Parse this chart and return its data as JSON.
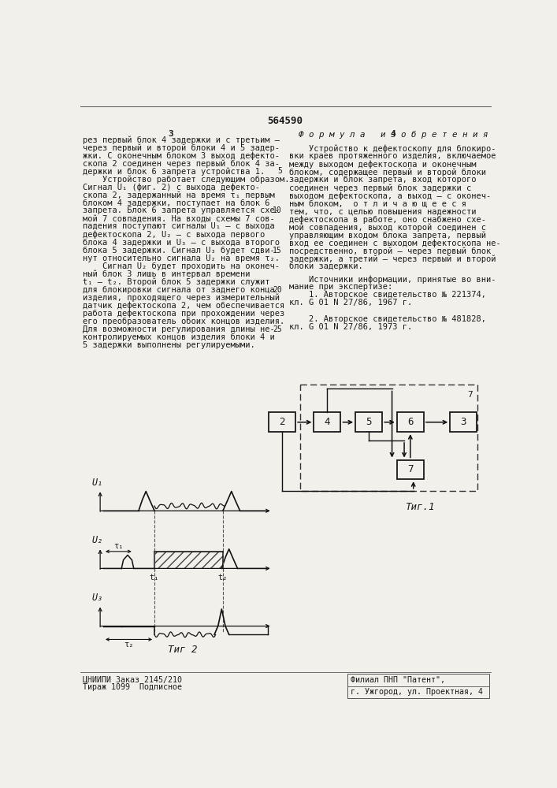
{
  "patent_number": "564590",
  "page_width": 7.07,
  "page_height": 10.0,
  "bg_color": "#f2f0eb",
  "text_color": "#1a1a1a",
  "col1_lines": [
    "рез первый блок 4 задержки и с третьим —",
    "через первый и второй блоки 4 и 5 задер-",
    "жки. С оконечным блоком 3 выход дефекто-",
    "скопа 2 соединен через первый блок 4 за-",
    "держки и блок 6 запрета устройства 1.",
    "    Устройство работает следующим образом.",
    "Сигнал U₁ (фиг. 2) с выхода дефекто-",
    "скопа 2, задержанный на время τ₁ первым",
    "блоком 4 задержки, поступает на блок 6",
    "запрета. Блок 6 запрета управляется схе-",
    "мой 7 совпадения. На входы схемы 7 сов-",
    "падения поступают сигналы U₁ — с выхода",
    "дефектоскопа 2, U₂ — с выхода первого",
    "блока 4 задержки и U₃ — с выхода второго",
    "блока 5 задержки. Сигнал U₃ будет сдви-",
    "нут относительно сигнала U₂ на время τ₂.",
    "    Сигнал U₂ будет проходить на оконеч-",
    "ный блок 3 лишь в интервал времени",
    "t₁ — t₂. Второй блок 5 задержки служит",
    "для блокировки сигнала от заднего конца",
    "изделия, проходящего через измерительный",
    "датчик дефектоскопа 2, чем обеспечивается",
    "работа дефектоскопа при прохождении через",
    "его преобразователь обоих концов изделия.",
    "Для возможности регулирования длины не-",
    "контролируемых концов изделия блоки 4 и",
    "5 задержки выполнены регулируемыми."
  ],
  "col2_header": "Ф о р м у л а   и з о б р е т е н и я",
  "col2_lines": [
    "    Устройство к дефектоскопу для блокиро-",
    "вки краев протяженного изделия, включаемое",
    "между выходом дефектоскопа и оконечным",
    "блоком, содержащее первый и второй блоки",
    "задержки и блок запрета, вход которого",
    "соединен через первый блок задержки с",
    "выходом дефектоскопа, а выход — с оконеч-",
    "ным блоком,  о т л и ч а ю щ е е с я",
    "тем, что, с целью повышения надежности",
    "дефектоскопа в работе, оно снабжено схе-",
    "мой совпадения, выход которой соединен с",
    "управляющим входом блока запрета, первый",
    "вход ее соединен с выходом дефектоскопа не-",
    "посредственно, второй — через первый блок",
    "задержки, а третий — через первый и второй",
    "блоки задержки."
  ],
  "src_header": "    Источники информации, принятые во вни-",
  "src_lines": [
    "мание при экспертизе:",
    "    1. Авторское свидетельство № 221374,",
    "кл. G 01 N 27/86, 1967 г.",
    "",
    "    2. Авторское свидетельство № 481828,",
    "кл. G 01 N 27/86, 1973 г."
  ],
  "footer_left1": "ЦНИИПИ Заказ 2145/210",
  "footer_left2": "Тираж 1099  Подписное",
  "footer_right1": "Филиал ПНП \"Патент\",",
  "footer_right2": "г. Ужгород, ул. Проектная, 4",
  "fig1_label": "Τиг.1",
  "fig2_label": "Τиг 2",
  "line_numbers": [
    "5",
    "10",
    "15",
    "20",
    "25"
  ]
}
